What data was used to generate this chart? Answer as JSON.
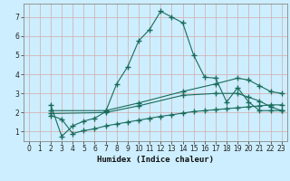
{
  "title": "",
  "xlabel": "Humidex (Indice chaleur)",
  "ylabel": "",
  "background_color": "#cceeff",
  "grid_color": "#c8dde0",
  "line_color": "#1a6b5a",
  "xlim": [
    -0.5,
    23.5
  ],
  "ylim": [
    0.5,
    7.7
  ],
  "xticks": [
    0,
    1,
    2,
    3,
    4,
    5,
    6,
    7,
    8,
    9,
    10,
    11,
    12,
    13,
    14,
    15,
    16,
    17,
    18,
    19,
    20,
    21,
    22,
    23
  ],
  "yticks": [
    1,
    2,
    3,
    4,
    5,
    6,
    7
  ],
  "series": [
    {
      "x": [
        2,
        3,
        4,
        5,
        6,
        7,
        8,
        9,
        10,
        11,
        12,
        13,
        14,
        15,
        16,
        17,
        18,
        19,
        20,
        21,
        22,
        23
      ],
      "y": [
        2.4,
        0.75,
        1.3,
        1.55,
        1.7,
        2.05,
        3.5,
        4.4,
        5.75,
        6.35,
        7.3,
        7.0,
        6.7,
        5.0,
        3.85,
        3.8,
        2.55,
        3.3,
        2.55,
        2.1,
        2.1,
        2.1
      ]
    },
    {
      "x": [
        2,
        7,
        10,
        14,
        17,
        19,
        20,
        21,
        22,
        23
      ],
      "y": [
        2.1,
        2.1,
        2.5,
        3.1,
        3.5,
        3.8,
        3.7,
        3.4,
        3.1,
        3.0
      ]
    },
    {
      "x": [
        2,
        7,
        10,
        14,
        17,
        19,
        20,
        21,
        22,
        23
      ],
      "y": [
        1.95,
        2.0,
        2.35,
        2.9,
        3.0,
        3.0,
        2.8,
        2.6,
        2.3,
        2.1
      ]
    },
    {
      "x": [
        2,
        3,
        4,
        5,
        6,
        7,
        8,
        9,
        10,
        11,
        12,
        13,
        14,
        15,
        16,
        17,
        18,
        19,
        20,
        21,
        22,
        23
      ],
      "y": [
        1.85,
        1.65,
        0.9,
        1.05,
        1.15,
        1.3,
        1.4,
        1.5,
        1.6,
        1.7,
        1.8,
        1.88,
        1.97,
        2.05,
        2.1,
        2.15,
        2.2,
        2.25,
        2.3,
        2.35,
        2.4,
        2.4
      ]
    }
  ]
}
